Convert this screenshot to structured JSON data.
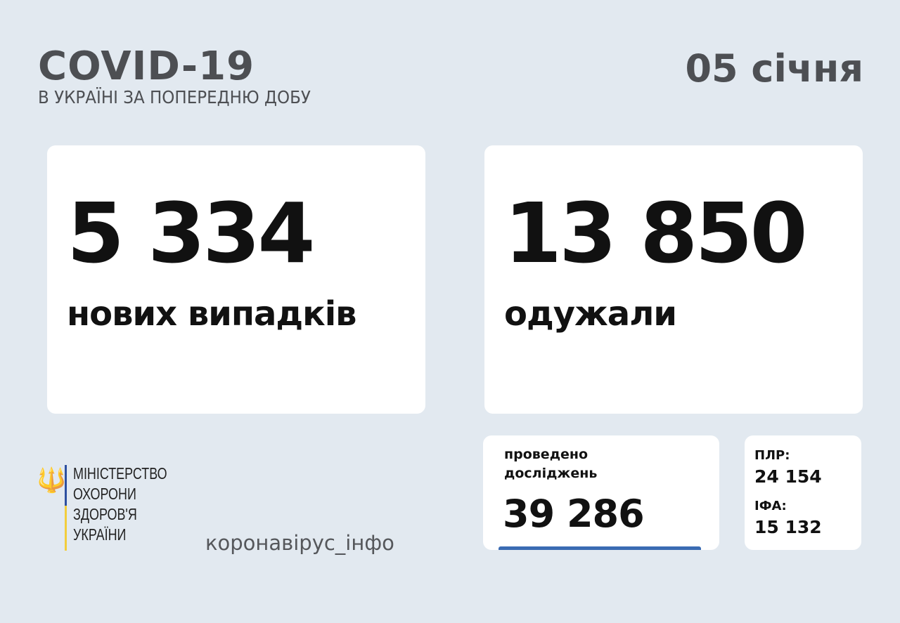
{
  "header": {
    "title": "COVID-19",
    "subtitle": "В УКРАЇНІ ЗА ПОПЕРЕДНЮ ДОБУ",
    "date": "05 січня"
  },
  "cases": {
    "value": "5 334",
    "label": "нових випадків"
  },
  "recovered": {
    "value": "13 850",
    "label": "одужали"
  },
  "tests": {
    "label_line1": "проведено",
    "label_line2": "досліджень",
    "value": "39 286"
  },
  "breakdown": {
    "pcr_label": "ПЛР:",
    "pcr_value": "24 154",
    "ifa_label": "ІФА:",
    "ifa_value": "15 132"
  },
  "footer": {
    "ministry": [
      "МІНІСТЕРСТВО",
      "ОХОРОНИ",
      "ЗДОРОВ'Я",
      "УКРАЇНИ"
    ],
    "site": "коронавірус_інфо"
  },
  "colors": {
    "background": "#e2e9f0",
    "accent_blue": "#3a6bb3",
    "accent_yellow": "#f2cd3c"
  }
}
